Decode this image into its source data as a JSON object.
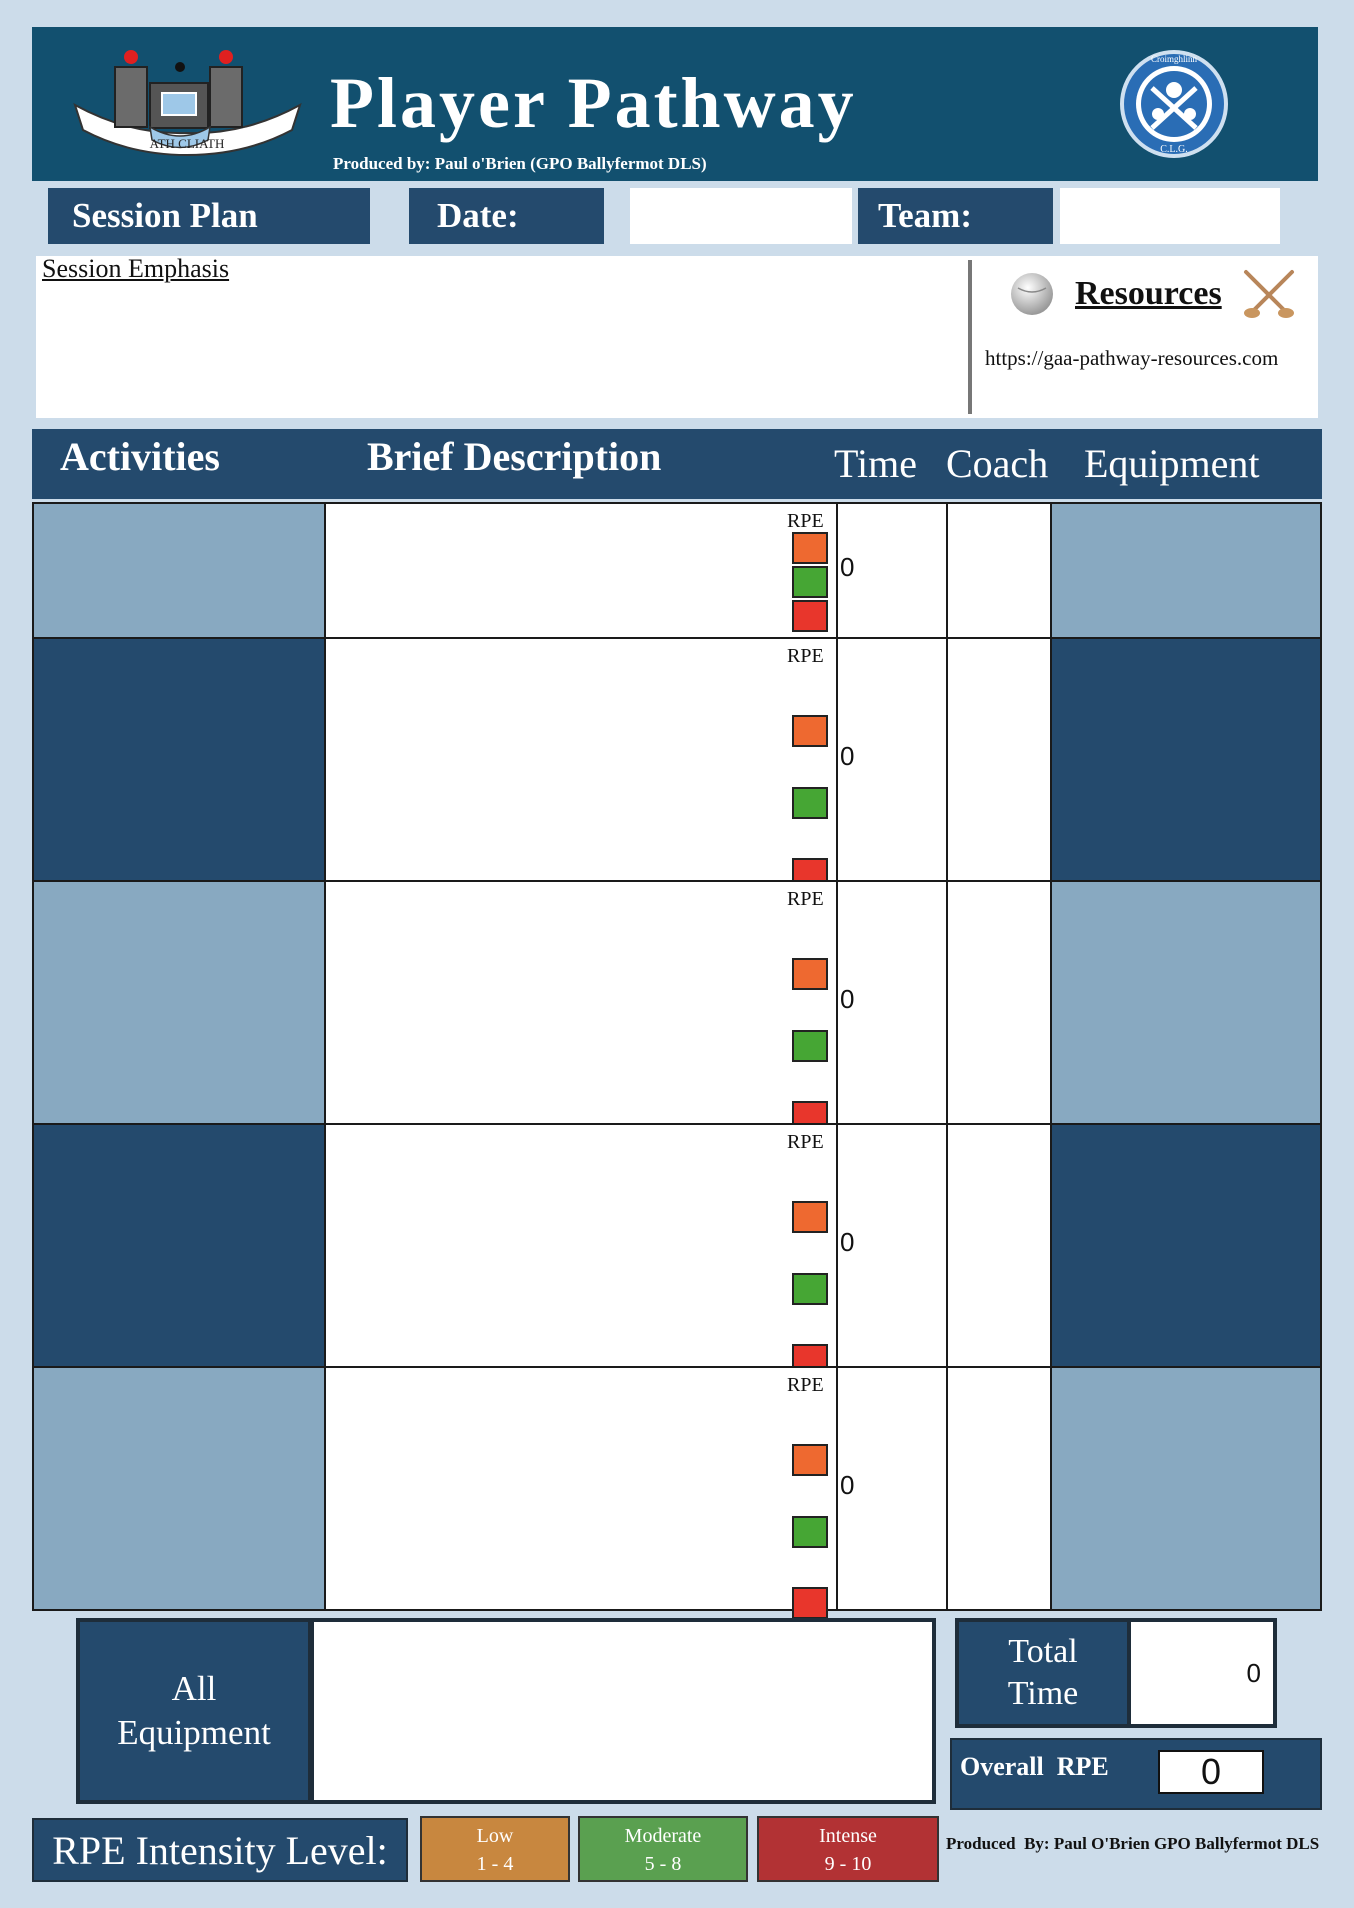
{
  "header": {
    "title": "Player Pathway",
    "produced_by": "Produced by: Paul o'Brien (GPO Ballyfermot DLS)",
    "left_crest_text": "ATH CLIATH",
    "right_crest_top": "Croimghlinn",
    "right_crest_bottom": "C.L.G."
  },
  "session_bar": {
    "session_plan": "Session Plan",
    "date_label": "Date:",
    "date_value": "",
    "team_label": "Team:",
    "team_value": ""
  },
  "emphasis": {
    "label": "Session Emphasis",
    "value": ""
  },
  "resources": {
    "title": "Resources",
    "url": "https://gaa-pathway-resources.com"
  },
  "columns": {
    "activities": "Activities",
    "description": "Brief Description",
    "time": "Time",
    "coach": "Coach",
    "equipment": "Equipment"
  },
  "rows": [
    {
      "rpe": "RPE",
      "time": "0"
    },
    {
      "rpe": "RPE",
      "time": "0"
    },
    {
      "rpe": "RPE",
      "time": "0"
    },
    {
      "rpe": "RPE",
      "time": "0"
    },
    {
      "rpe": "RPE",
      "time": "0"
    }
  ],
  "footer": {
    "all_equipment_line1": "All",
    "all_equipment_line2": "Equipment",
    "total_time_line1": "Total",
    "total_time_line2": "Time",
    "total_time_value": "0",
    "overall_rpe_label": "Overall  RPE",
    "overall_rpe_value": "0",
    "intensity_label": "RPE Intensity Level:",
    "levels": [
      {
        "name": "Low",
        "range": "1 - 4",
        "color": "#c8873f"
      },
      {
        "name": "Moderate",
        "range": "5 - 8",
        "color": "#5aa050"
      },
      {
        "name": "Intense",
        "range": "9 - 10",
        "color": "#b23234"
      }
    ],
    "produced_by": "Produced  By: Paul O'Brien GPO Ballyfermot DLS"
  },
  "colors": {
    "navy": "#244a6d",
    "header": "#12506f",
    "light": "#88a9c1",
    "bg": "#ccdcea"
  }
}
